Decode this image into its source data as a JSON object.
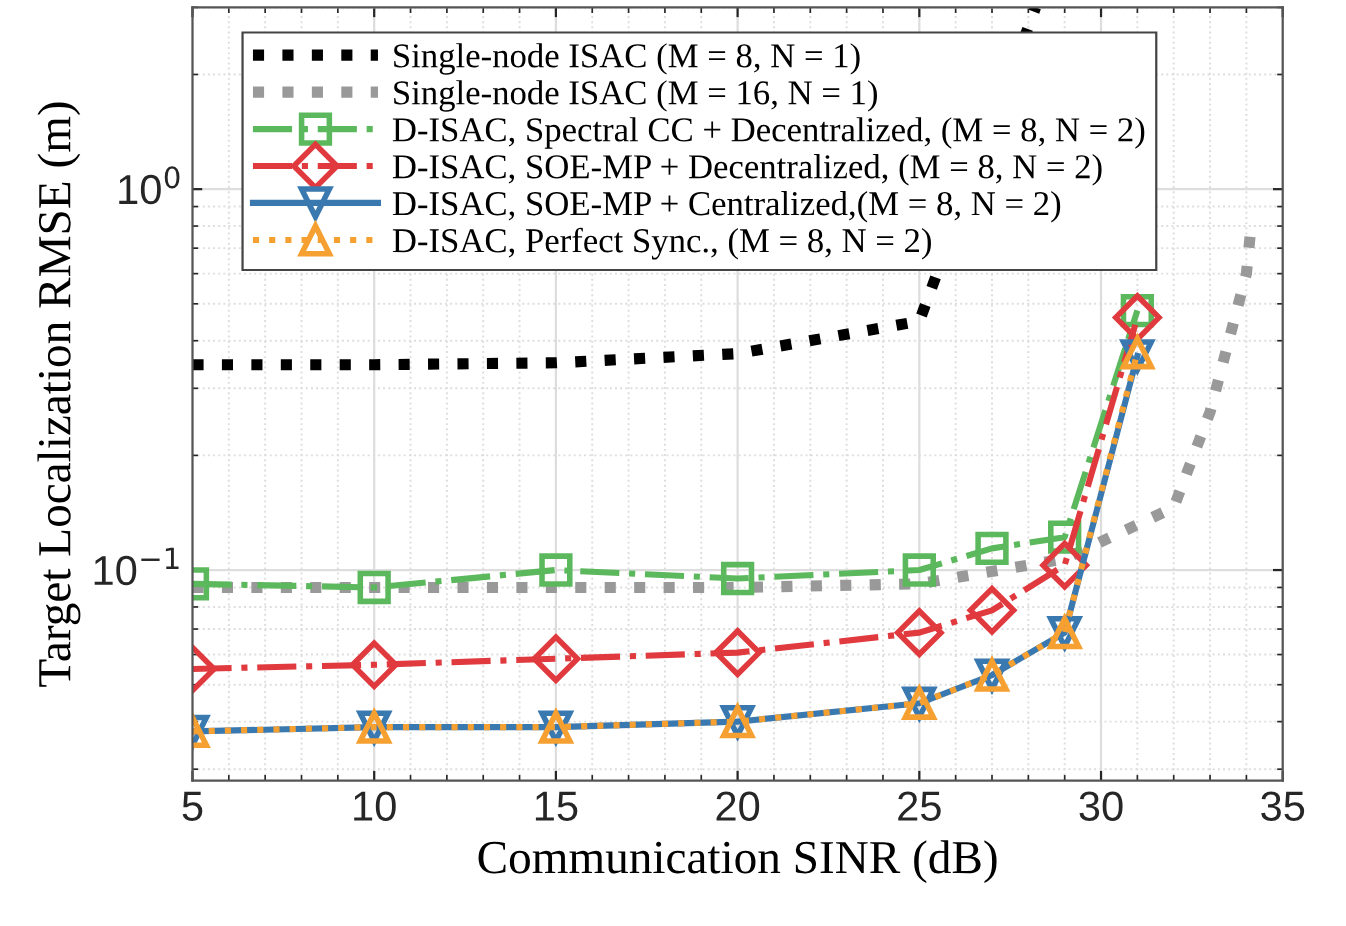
{
  "chart_data": {
    "type": "line",
    "xlabel": "Communication SINR (dB)",
    "ylabel": "Target Localization RMSE (m)",
    "x": [
      5,
      10,
      15,
      20,
      25,
      27,
      29,
      31
    ],
    "series": [
      {
        "name": "Single-node ISAC (M = 8, N = 1)",
        "color": "#000000",
        "line_style": "dotted",
        "marker": "none",
        "x": [
          5,
          10,
          15,
          20,
          25,
          28.2
        ],
        "values": [
          0.346,
          0.346,
          0.35,
          0.37,
          0.45,
          3
        ]
      },
      {
        "name": "Single-node ISAC (M = 16, N = 1)",
        "color": "#999999",
        "line_style": "dotted",
        "marker": "none",
        "x": [
          5,
          10,
          15,
          20,
          25,
          29,
          32,
          33,
          34,
          34.1
        ],
        "values": [
          0.09,
          0.09,
          0.09,
          0.09,
          0.092,
          0.107,
          0.146,
          0.26,
          0.6,
          0.75
        ]
      },
      {
        "name": "D-ISAC, Spectral CC + Decentralized, (M = 8, N = 2)",
        "color": "#5cb85c",
        "line_style": "dashdot",
        "marker": "square",
        "values": [
          0.092,
          0.09,
          0.1,
          0.095,
          0.1,
          0.114,
          0.122,
          0.48
        ]
      },
      {
        "name": "D-ISAC, SOE-MP + Decentralized, (M = 8, N = 2)",
        "color": "#e0393e",
        "line_style": "dashdot",
        "marker": "diamond",
        "values": [
          0.055,
          0.0564,
          0.0585,
          0.0607,
          0.0685,
          0.0784,
          0.103,
          0.46
        ]
      },
      {
        "name": "D-ISAC, SOE-MP + Centralized,(M = 8, N = 2)",
        "color": "#3a78b0",
        "line_style": "solid",
        "marker": "triangle_down",
        "values": [
          0.0377,
          0.0387,
          0.0387,
          0.04,
          0.0447,
          0.053,
          0.0685,
          0.365
        ]
      },
      {
        "name": "D-ISAC, Perfect Sync., (M = 8, N = 2)",
        "color": "#f5a030",
        "line_style": "dotted",
        "marker": "triangle",
        "values": [
          0.0377,
          0.0387,
          0.0387,
          0.04,
          0.0447,
          0.053,
          0.0685,
          0.372
        ]
      }
    ],
    "log": "y",
    "xlim": [
      5,
      35
    ],
    "xticks": [
      5,
      10,
      15,
      20,
      25,
      30,
      35
    ],
    "ylim": [
      0.028,
      3
    ],
    "yticks": [
      {
        "value": 0.1,
        "label": "10$^{−1}$"
      },
      {
        "value": 1,
        "label": "10$^{0}$"
      }
    ],
    "grid": true,
    "legend": "top left"
  }
}
